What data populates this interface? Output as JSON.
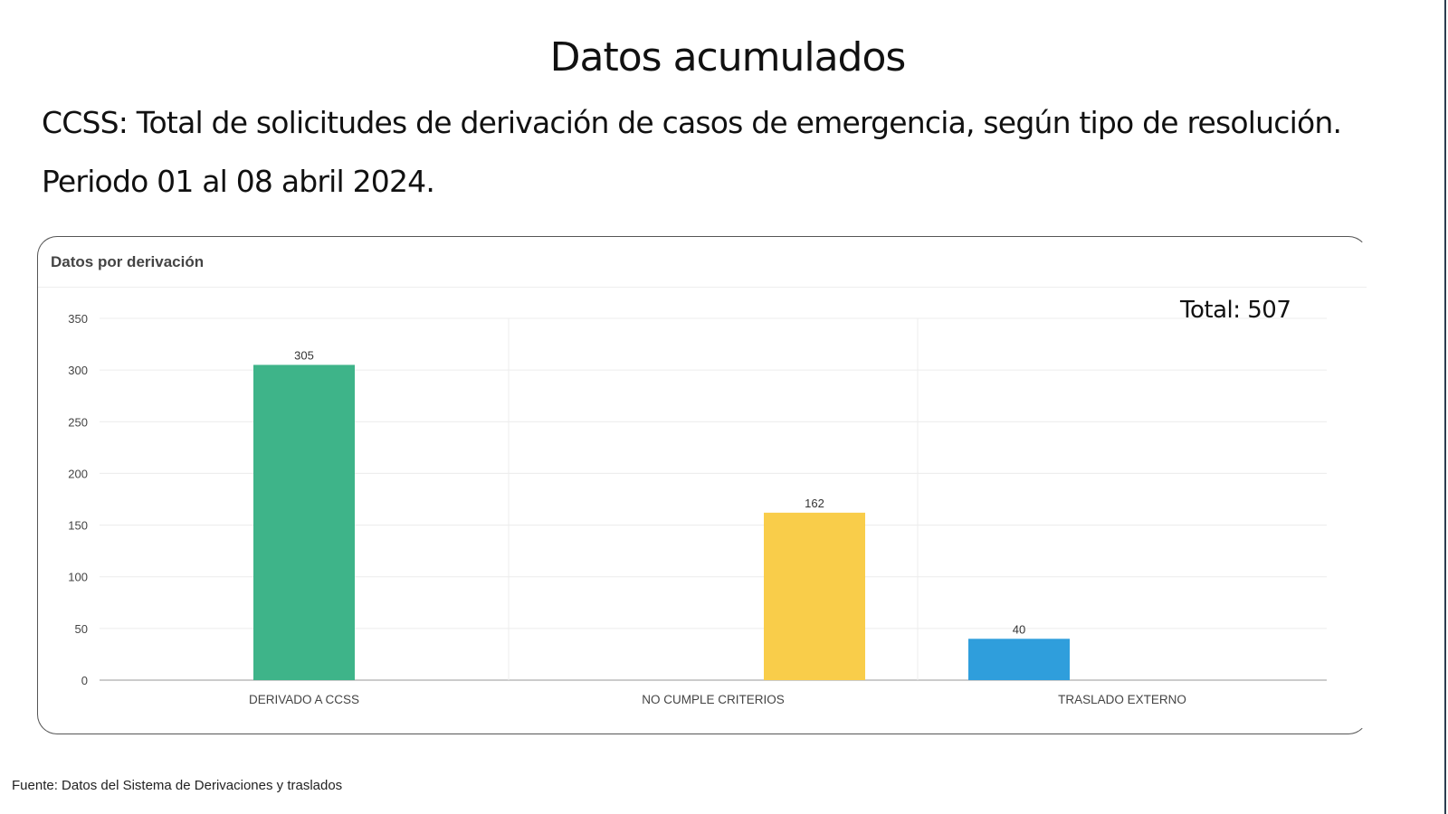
{
  "header": {
    "title": "Datos acumulados",
    "subtitle": "CCSS: Total de solicitudes de derivación de casos de emergencia, según  tipo  de resolución.",
    "period": "Periodo 01 al 08 abril 2024."
  },
  "card": {
    "title": "Datos por derivación",
    "total": "Total: 507"
  },
  "footer": "Fuente: Datos del Sistema de Derivaciones y traslados",
  "chart_data": {
    "type": "bar",
    "title": "Datos por derivación",
    "categories": [
      "DERIVADO A CCSS",
      "NO CUMPLE CRITERIOS",
      "TRASLADO EXTERNO"
    ],
    "values": [
      305,
      162,
      40
    ],
    "data_labels": [
      "305",
      "162",
      "40"
    ],
    "colors": [
      "#3eb489",
      "#f9cd4a",
      "#2f9edc"
    ],
    "ylim": [
      0,
      350
    ],
    "yticks": [
      "0",
      "50",
      "100",
      "150",
      "200",
      "250",
      "300",
      "350"
    ],
    "grid": true,
    "xlabel": "",
    "ylabel": ""
  }
}
